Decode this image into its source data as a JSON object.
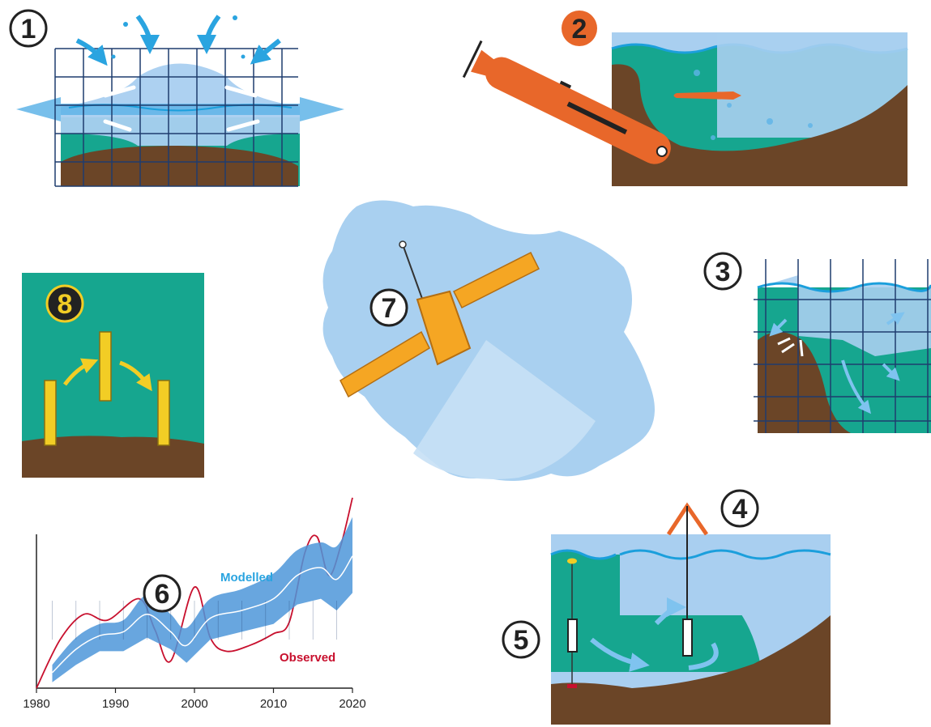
{
  "panels": {
    "p1": {
      "number": "1"
    },
    "p2": {
      "number": "2"
    },
    "p3": {
      "number": "3"
    },
    "p4": {
      "number": "4"
    },
    "p5": {
      "number": "5"
    },
    "p6": {
      "number": "6"
    },
    "p7": {
      "number": "7"
    },
    "p8": {
      "number": "8"
    }
  },
  "colors": {
    "sea_blue": "#1b9fdc",
    "ice_light": "#a9cff0",
    "ocean_teal": "#16a68f",
    "seabed_brown": "#6b4527",
    "grid_navy": "#1f3d6e",
    "glider_orange": "#e8672a",
    "float_yellow": "#f2cd25",
    "satellite_orange": "#f5a623",
    "antarctica_blue": "#a9d0f0",
    "observed_red": "#c8102e",
    "modelled_blue": "#2aa4e0",
    "modelled_band": "#4e97d9"
  },
  "chart_data": {
    "type": "line",
    "x_ticks": [
      1980,
      1990,
      2000,
      2010,
      2020
    ],
    "xlim": [
      1980,
      2020
    ],
    "ylim": [
      0,
      10
    ],
    "series": [
      {
        "name": "Observed",
        "color": "#c8102e",
        "x": [
          1980,
          1983,
          1986,
          1989,
          1993,
          1995,
          1997,
          2000,
          2002,
          2004,
          2007,
          2010,
          2012,
          2014,
          2015.5,
          2017,
          2018.5,
          2020
        ],
        "y": [
          0,
          2.5,
          3.8,
          3.5,
          4.6,
          3.0,
          1.4,
          5.2,
          2.6,
          1.9,
          2.2,
          2.8,
          3.4,
          7.0,
          7.8,
          5.8,
          7.3,
          9.8
        ]
      },
      {
        "name": "Modelled",
        "color": "#2aa4e0",
        "x": [
          1982,
          1985,
          1988,
          1991,
          1994,
          1997,
          1999,
          2002,
          2006,
          2010,
          2013,
          2016,
          2018,
          2020
        ],
        "y": [
          0.8,
          2.0,
          2.7,
          2.9,
          3.8,
          2.9,
          2.2,
          3.6,
          4.0,
          4.6,
          5.8,
          6.2,
          5.6,
          6.8
        ],
        "band_low": [
          0.3,
          1.2,
          1.9,
          1.9,
          2.6,
          2.0,
          1.3,
          2.5,
          2.9,
          3.3,
          4.3,
          4.6,
          4.0,
          4.9
        ],
        "band_high": [
          1.2,
          2.6,
          3.3,
          3.5,
          4.8,
          3.8,
          3.1,
          4.6,
          5.1,
          5.9,
          7.1,
          7.5,
          7.3,
          8.8
        ]
      }
    ]
  }
}
